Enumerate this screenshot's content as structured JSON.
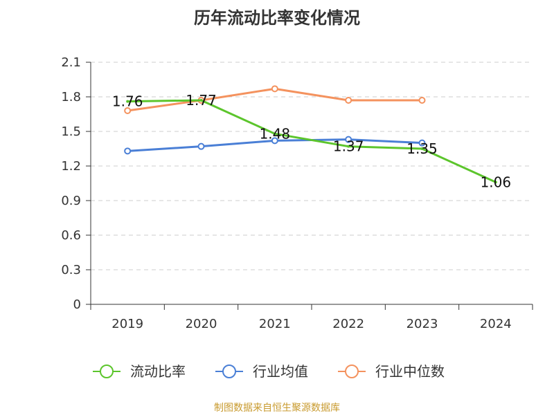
{
  "title": "历年流动比率变化情况",
  "source": "制图数据来自恒生聚源数据库",
  "chart_data": {
    "type": "line",
    "title": "历年流动比率变化情况",
    "categories": [
      "2019",
      "2020",
      "2021",
      "2022",
      "2023",
      "2024"
    ],
    "ylim": [
      0,
      2.1
    ],
    "yticks": [
      "0",
      "0.3",
      "0.6",
      "0.9",
      "1.2",
      "1.5",
      "1.8",
      "2.1"
    ],
    "grid": true,
    "legend_position": "bottom",
    "series": [
      {
        "name": "流动比率",
        "color": "#5cc52c",
        "values": [
          1.76,
          1.77,
          1.48,
          1.37,
          1.35,
          1.06
        ],
        "labels": [
          "1.76",
          "1.77",
          "1.48",
          "1.37",
          "1.35",
          "1.06"
        ]
      },
      {
        "name": "行业均值",
        "color": "#4a7fd6",
        "values": [
          1.33,
          1.37,
          1.42,
          1.43,
          1.4,
          null
        ]
      },
      {
        "name": "行业中位数",
        "color": "#f4925e",
        "values": [
          1.68,
          1.77,
          1.87,
          1.77,
          1.77,
          null
        ]
      }
    ]
  }
}
